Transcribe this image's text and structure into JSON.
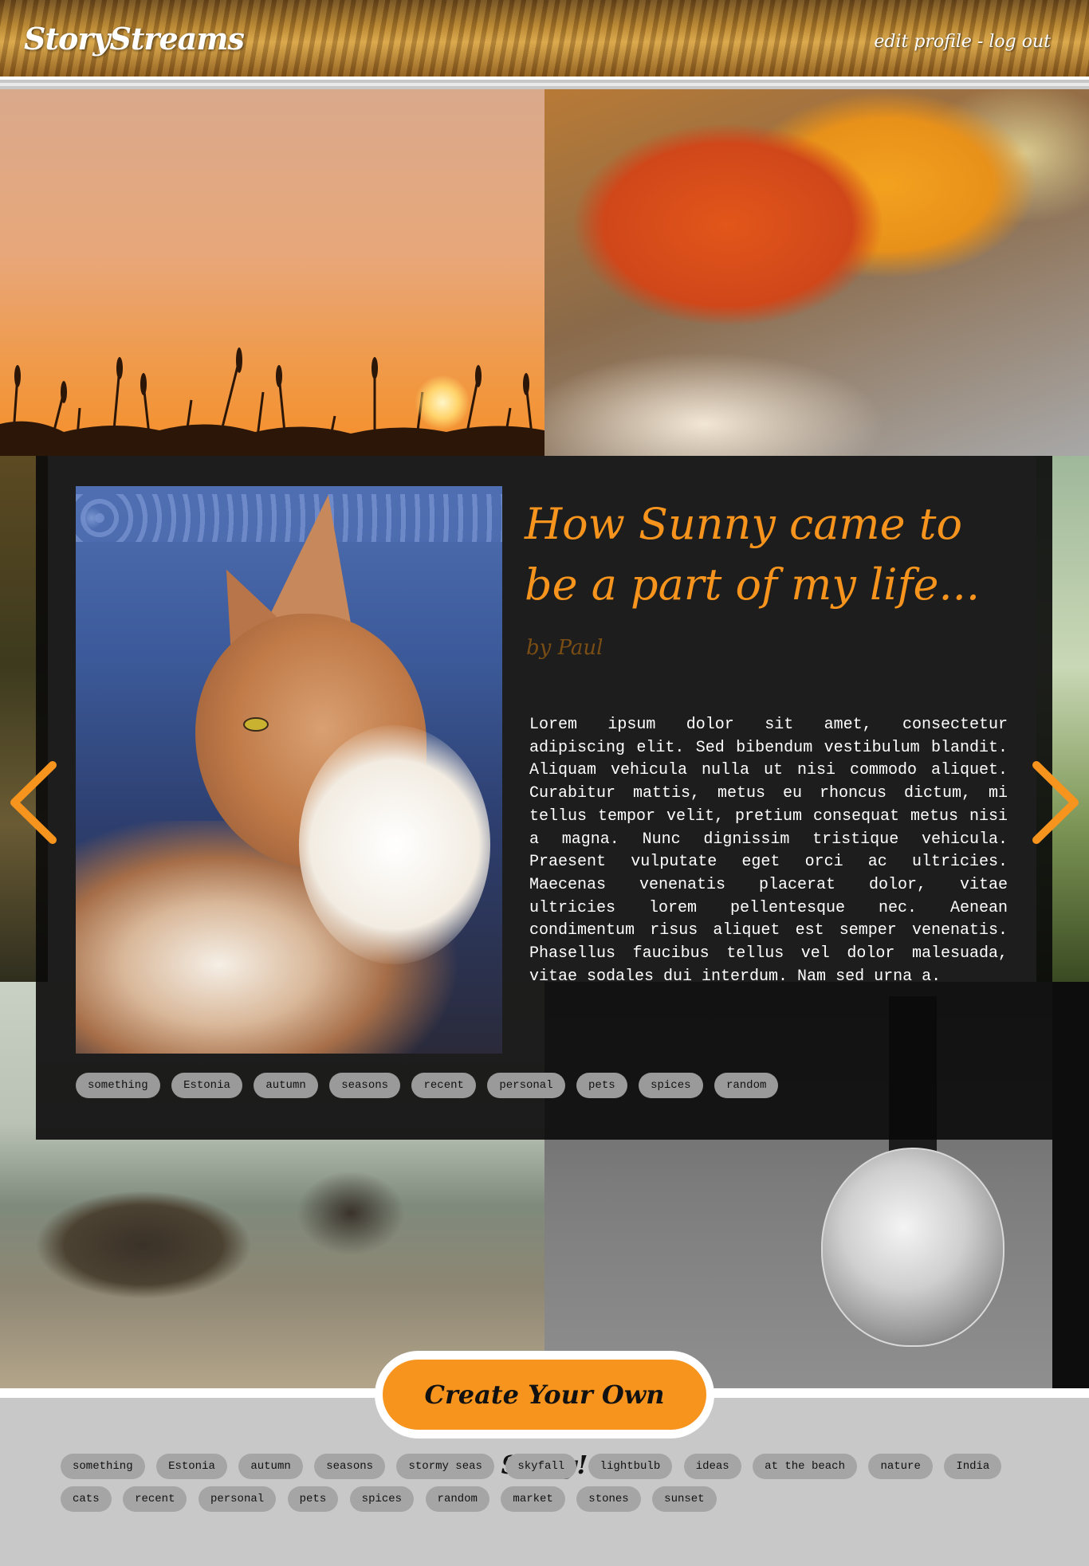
{
  "header": {
    "logo": "StoryStreams",
    "links": [
      {
        "label": "edit profile"
      },
      {
        "label": "log out"
      }
    ],
    "separator": "-"
  },
  "story": {
    "title": "How Sunny came to be a part of my life...",
    "author": "by Paul",
    "body": "Lorem ipsum dolor sit amet, consectetur adipiscing elit. Sed bibendum vestibulum blandit. Aliquam vehicula nulla ut nisi commodo aliquet. Curabitur mattis, metus eu rhoncus dictum, mi tellus tempor velit, pretium consequat metus nisi a magna. Nunc dignissim tristique vehicula. Praesent vulputate eget orci ac ultricies. Maecenas venenatis placerat dolor, vitae ultricies lorem pellentesque nec. Aenean condimentum risus aliquet est semper venenatis. Phasellus faucibus tellus vel dolor malesuada, vitae sodales dui interdum. Nam sed urna a.",
    "tags": [
      "something",
      "Estonia",
      "autumn",
      "seasons",
      "recent",
      "personal",
      "pets",
      "spices",
      "random"
    ]
  },
  "nav": {
    "prev_icon": "chevron-left-icon",
    "next_icon": "chevron-right-icon"
  },
  "cta": {
    "label": "Create Your Own Story!"
  },
  "footer": {
    "tags": [
      "something",
      "Estonia",
      "autumn",
      "seasons",
      "stormy seas",
      "skyfall",
      "lightbulb",
      "ideas",
      "at the beach",
      "nature",
      "India",
      "cats",
      "recent",
      "personal",
      "pets",
      "spices",
      "random",
      "market",
      "stones",
      "sunset"
    ]
  },
  "colors": {
    "accent": "#f7941d",
    "panel": "#0a0a0a",
    "tag_bg": "#9a9a9a",
    "footer_bg": "#c8c8c8"
  }
}
